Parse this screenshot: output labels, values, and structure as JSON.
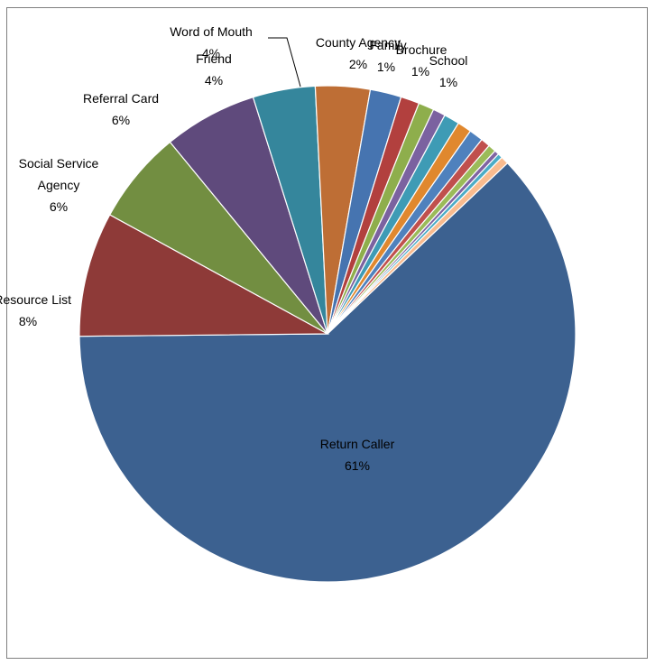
{
  "chart_data": {
    "type": "pie",
    "title": "",
    "slices": [
      {
        "label": "Return Caller",
        "value": 61,
        "display": "61%",
        "color": "#3C6190"
      },
      {
        "label": "Resource List",
        "value": 8,
        "display": "8%",
        "color": "#8E3A38"
      },
      {
        "label": "Social Service Agency",
        "value": 6,
        "display": "6%",
        "color": "#728E41"
      },
      {
        "label": "Referral Card",
        "value": 6,
        "display": "6%",
        "color": "#5F4A7C"
      },
      {
        "label": "Friend",
        "value": 4,
        "display": "4%",
        "color": "#35869C"
      },
      {
        "label": "Word of Mouth",
        "value": 3.5,
        "display": "4%",
        "color": "#BE6E35"
      },
      {
        "label": "County Agency",
        "value": 2,
        "display": "2%",
        "color": "#4674B0"
      },
      {
        "label": "Family",
        "value": 1.2,
        "display": "1%",
        "color": "#B2403E"
      },
      {
        "label": "",
        "value": 1.0,
        "display": "",
        "color": "#8EAE4C"
      },
      {
        "label": "",
        "value": 0.8,
        "display": "",
        "color": "#7B62A0"
      },
      {
        "label": "Brochure",
        "value": 1.0,
        "display": "1%",
        "color": "#3E9BB5"
      },
      {
        "label": "",
        "value": 0.9,
        "display": "",
        "color": "#E0882E"
      },
      {
        "label": "School",
        "value": 0.9,
        "display": "1%",
        "color": "#4F81BD"
      },
      {
        "label": "",
        "value": 0.6,
        "display": "",
        "color": "#C0504D"
      },
      {
        "label": "",
        "value": 0.5,
        "display": "",
        "color": "#9BBB59"
      },
      {
        "label": "",
        "value": 0.3,
        "display": "",
        "color": "#8064A2"
      },
      {
        "label": "",
        "value": 0.3,
        "display": "",
        "color": "#4BACC6"
      },
      {
        "label": "",
        "value": 0.5,
        "display": "",
        "color": "#F9BB8F"
      }
    ]
  }
}
